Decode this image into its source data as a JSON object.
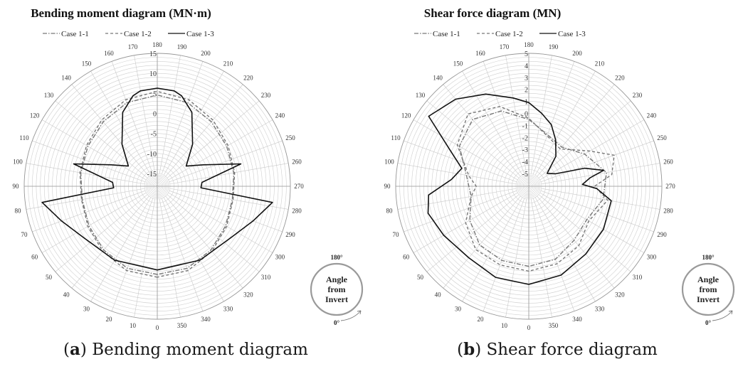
{
  "chart_data": [
    {
      "type": "polar-line",
      "title": "Bending moment diagram (MN·m)",
      "caption_letter": "a",
      "caption_text": " Bending moment diagram",
      "r_range": [
        -15,
        15
      ],
      "r_ticks": [
        "-15",
        "-10",
        "-5",
        "0",
        "5",
        "10",
        "15"
      ],
      "angle_ticks": [
        "0",
        "10",
        "20",
        "30",
        "40",
        "50",
        "60",
        "70",
        "80",
        "90",
        "100",
        "110",
        "120",
        "130",
        "140",
        "150",
        "160",
        "170",
        "180",
        "190",
        "200",
        "210",
        "220",
        "230",
        "240",
        "250",
        "260",
        "270",
        "280",
        "290",
        "300",
        "310",
        "320",
        "330",
        "340",
        "350"
      ],
      "legend": [
        "Case 1-1",
        "Case 1-2",
        "Case 1-3"
      ],
      "badge": {
        "top": "180°",
        "lines": [
          "Angle",
          "from",
          "Invert"
        ],
        "bottom": "0°"
      },
      "series": [
        {
          "name": "Case 1-1",
          "dash": "dashdot",
          "color": "#777777",
          "angles": [
            0,
            20,
            40,
            60,
            80,
            100,
            120,
            140,
            160,
            180,
            200,
            220,
            240,
            260,
            280,
            300,
            320,
            340
          ],
          "values": [
            3.8,
            3.6,
            2.6,
            1.5,
            0.8,
            1.2,
            1.8,
            2.8,
            4.0,
            4.6,
            4.0,
            2.8,
            1.8,
            1.2,
            0.8,
            1.5,
            2.6,
            3.6
          ]
        },
        {
          "name": "Case 1-2",
          "dash": "dash",
          "color": "#777777",
          "angles": [
            0,
            20,
            40,
            60,
            80,
            100,
            120,
            140,
            160,
            180,
            200,
            220,
            240,
            260,
            280,
            300,
            320,
            340
          ],
          "values": [
            4.5,
            4.2,
            3.0,
            1.8,
            1.0,
            1.4,
            2.2,
            3.4,
            4.8,
            5.5,
            4.8,
            3.4,
            2.2,
            1.4,
            1.0,
            1.8,
            3.0,
            4.2
          ]
        },
        {
          "name": "Case 1-3",
          "dash": "solid",
          "color": "#111111",
          "angles": [
            0,
            30,
            55,
            70,
            82,
            88,
            95,
            105,
            115,
            125,
            140,
            155,
            165,
            170,
            180,
            190,
            195,
            205,
            220,
            235,
            245,
            255,
            265,
            272,
            278,
            290,
            305,
            330
          ],
          "values": [
            2.7,
            3.1,
            4.2,
            7.2,
            10.8,
            -7.3,
            -7.0,
            3.4,
            -5.5,
            -9.4,
            -4.5,
            2.2,
            5.2,
            6.0,
            6.3,
            6.0,
            5.2,
            2.2,
            -4.5,
            -9.4,
            -5.5,
            3.4,
            -7.0,
            -7.3,
            10.8,
            7.2,
            4.2,
            3.1
          ]
        }
      ]
    },
    {
      "type": "polar-line",
      "title": "Shear force diagram (MN)",
      "caption_letter": "b",
      "caption_text": " Shear force diagram",
      "r_range": [
        -5,
        5
      ],
      "r_ticks": [
        "-5",
        "-4",
        "-3",
        "-2",
        "-1",
        "0",
        "1",
        "2",
        "3",
        "4",
        "5"
      ],
      "angle_ticks": [
        "0",
        "10",
        "20",
        "30",
        "40",
        "50",
        "60",
        "70",
        "80",
        "90",
        "100",
        "110",
        "120",
        "130",
        "140",
        "150",
        "160",
        "170",
        "180",
        "190",
        "200",
        "210",
        "220",
        "230",
        "240",
        "250",
        "260",
        "270",
        "280",
        "290",
        "300",
        "310",
        "320",
        "330",
        "340",
        "350"
      ],
      "legend": [
        "Case 1-1",
        "Case 1-2",
        "Case 1-3"
      ],
      "badge": {
        "top": "180°",
        "lines": [
          "Angle",
          "from",
          "Invert"
        ],
        "bottom": "0°"
      },
      "series": [
        {
          "name": "Case 1-1",
          "dash": "dashdot",
          "color": "#777777",
          "angles": [
            0,
            20,
            40,
            60,
            80,
            100,
            120,
            140,
            160,
            180,
            200,
            220,
            240,
            260,
            280,
            300,
            320,
            340
          ],
          "values": [
            0.6,
            0.5,
            0.3,
            -0.4,
            -1.2,
            -0.8,
            0.6,
            1.2,
            0.6,
            -0.5,
            -1.5,
            -1.8,
            -0.7,
            0.5,
            0.2,
            -0.5,
            -0.2,
            0.4
          ]
        },
        {
          "name": "Case 1-2",
          "dash": "dash",
          "color": "#777777",
          "angles": [
            0,
            20,
            40,
            60,
            80,
            90,
            100,
            120,
            140,
            160,
            180,
            200,
            220,
            240,
            250,
            262,
            270,
            280,
            300,
            320,
            340
          ],
          "values": [
            1.0,
            0.9,
            0.8,
            0.0,
            -1.2,
            -1.7,
            -1.0,
            0.8,
            1.8,
            1.0,
            -0.4,
            -1.6,
            -2.0,
            -0.2,
            1.5,
            0.9,
            -0.6,
            0.6,
            -0.3,
            0.4,
            0.8
          ]
        },
        {
          "name": "Case 1-3",
          "dash": "solid",
          "color": "#111111",
          "angles": [
            0,
            20,
            40,
            60,
            75,
            85,
            95,
            105,
            115,
            125,
            140,
            155,
            170,
            180,
            190,
            200,
            210,
            222,
            235,
            245,
            252,
            258,
            262,
            268,
            272,
            280,
            300,
            320,
            340
          ],
          "values": [
            2.1,
            2.0,
            1.7,
            2.1,
            2.6,
            2.3,
            0.4,
            -0.3,
            1.2,
            4.1,
            3.4,
            2.4,
            1.4,
            0.9,
            0.1,
            -0.6,
            -1.6,
            -2.7,
            -4.2,
            -3.6,
            -1.2,
            0.3,
            -0.9,
            -1.6,
            -0.4,
            0.9,
            1.1,
            1.3,
            1.8
          ]
        }
      ]
    }
  ]
}
